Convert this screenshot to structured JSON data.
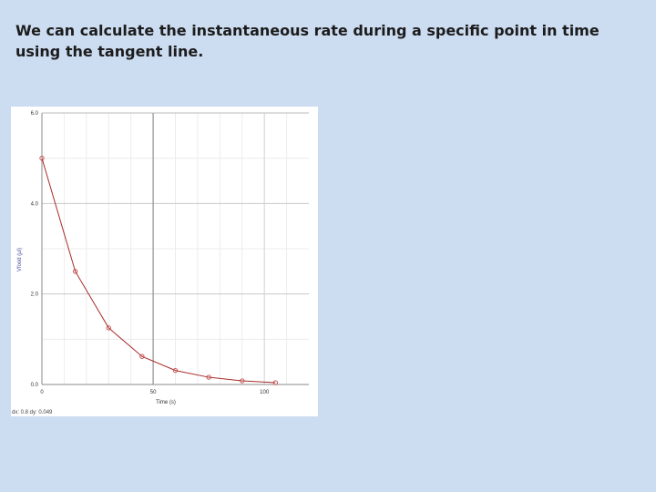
{
  "slide": {
    "body_text": "We can calculate the instantaneous rate during a specific point in time using the tangent line."
  },
  "chart_data": {
    "type": "line",
    "x": [
      0,
      15,
      30,
      45,
      60,
      75,
      90,
      105
    ],
    "series": [
      {
        "values": [
          5.0,
          2.5,
          1.25,
          0.62,
          0.31,
          0.16,
          0.08,
          0.04
        ]
      }
    ],
    "xlim": [
      0,
      120
    ],
    "ylim": [
      0,
      6
    ],
    "x_ticks": [
      "0",
      "50",
      "100"
    ],
    "y_ticks": [
      "0.0",
      "2.0",
      "4.0",
      "6.0"
    ],
    "xlabel": "Time (s)",
    "ylabel": "Vfood (μl)",
    "grid": true,
    "line_color": "#a82a2a",
    "marker_color": "#c44848",
    "cursor_x": 50,
    "cursor_readout": "dx: 0.8 dy: 0.049"
  }
}
